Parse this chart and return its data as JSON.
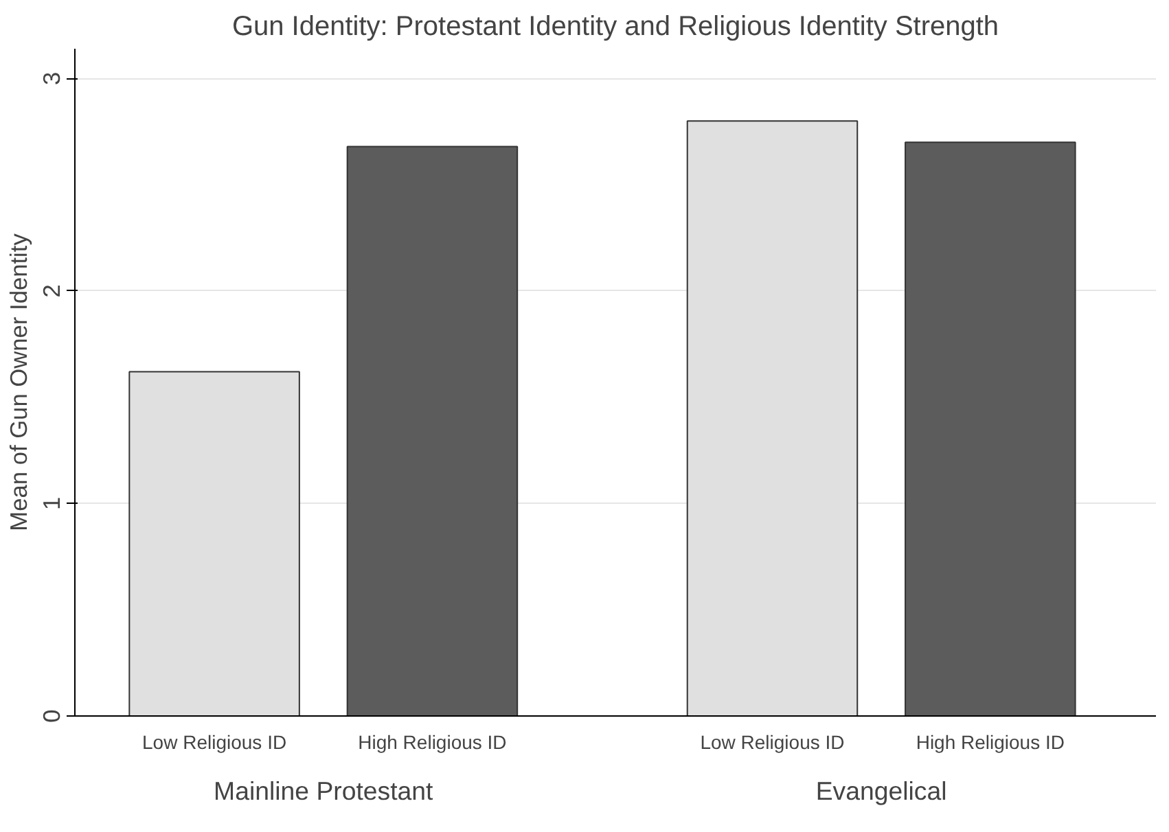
{
  "chart_data": {
    "type": "bar",
    "title": "Gun Identity: Protestant Identity and Religious Identity Strength",
    "ylabel": "Mean of Gun Owner Identity",
    "categories": [
      "Low Religious ID",
      "High Religious ID",
      "Low Religious ID",
      "High Religious ID"
    ],
    "values": [
      1.62,
      2.68,
      2.8,
      2.7
    ],
    "colors": [
      "#e0e0e0",
      "#5c5c5c",
      "#e0e0e0",
      "#5c5c5c"
    ],
    "ylim": [
      0,
      3.14
    ],
    "yticks": [
      0,
      1,
      2,
      3
    ],
    "grid": "y",
    "annotations": [
      "Mainline Protestant",
      "Evangelical"
    ]
  }
}
